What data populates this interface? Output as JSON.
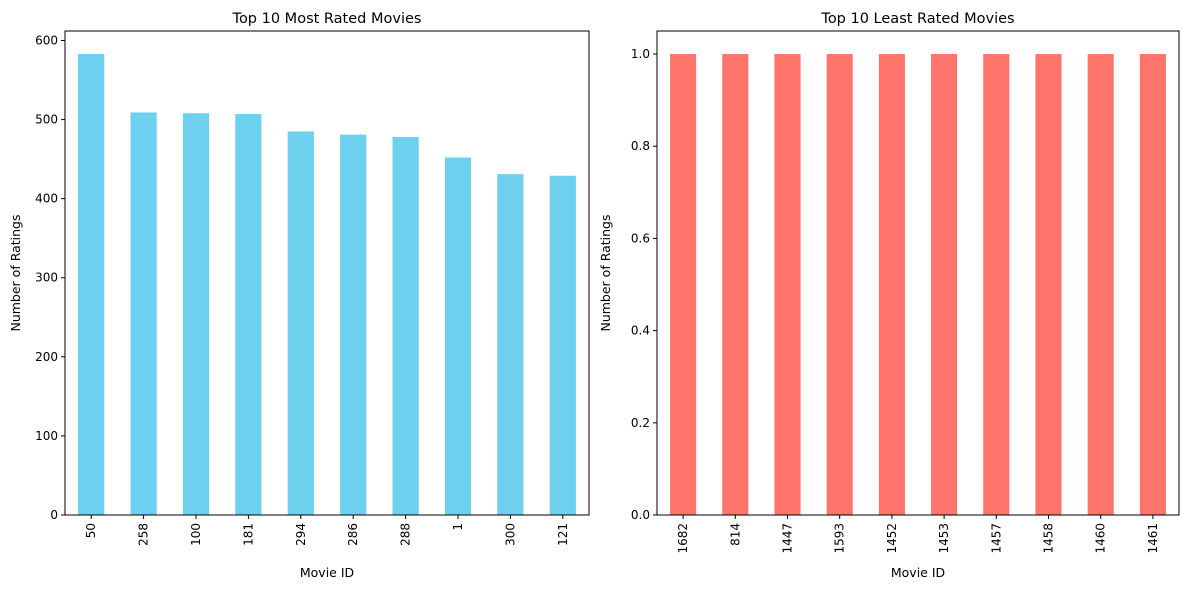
{
  "chart_data": [
    {
      "type": "bar",
      "title": "Top 10 Most Rated Movies",
      "xlabel": "Movie ID",
      "ylabel": "Number of Ratings",
      "categories": [
        "50",
        "258",
        "100",
        "181",
        "294",
        "286",
        "288",
        "1",
        "300",
        "121"
      ],
      "values": [
        583,
        509,
        508,
        507,
        485,
        481,
        478,
        452,
        431,
        429
      ],
      "ylim": [
        0,
        612
      ],
      "yticks": [
        "0",
        "100",
        "200",
        "300",
        "400",
        "500",
        "600"
      ],
      "ytick_values": [
        0,
        100,
        200,
        300,
        400,
        500,
        600
      ],
      "color": "#6dd0ee",
      "grid": false,
      "xtick_rotation": "vertical"
    },
    {
      "type": "bar",
      "title": "Top 10 Least Rated Movies",
      "xlabel": "Movie ID",
      "ylabel": "Number of Ratings",
      "categories": [
        "1682",
        "814",
        "1447",
        "1593",
        "1452",
        "1453",
        "1457",
        "1458",
        "1460",
        "1461"
      ],
      "values": [
        1,
        1,
        1,
        1,
        1,
        1,
        1,
        1,
        1,
        1
      ],
      "ylim": [
        0,
        1.05
      ],
      "yticks": [
        "0.0",
        "0.2",
        "0.4",
        "0.6",
        "0.8",
        "1.0"
      ],
      "ytick_values": [
        0,
        0.2,
        0.4,
        0.6,
        0.8,
        1.0
      ],
      "color": "#ff756c",
      "grid": false,
      "xtick_rotation": "vertical"
    }
  ]
}
